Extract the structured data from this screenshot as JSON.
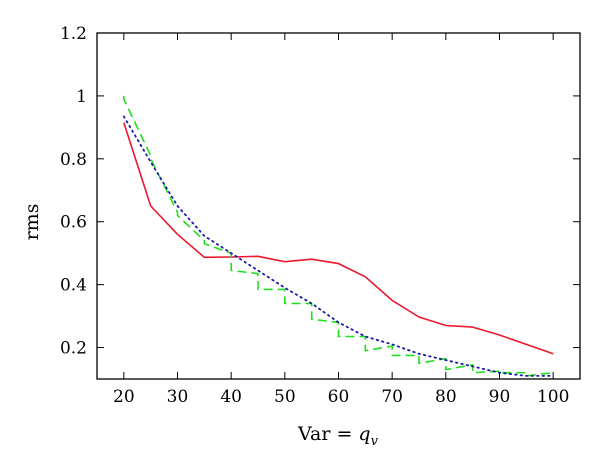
{
  "chart_data": {
    "type": "line",
    "title": "",
    "xlabel_prefix": "Var = ",
    "xlabel_var": "q",
    "xlabel_sub": "v",
    "ylabel": "rms",
    "xlim": [
      15,
      105
    ],
    "ylim": [
      0.1,
      1.2
    ],
    "xticks": [
      20,
      30,
      40,
      50,
      60,
      70,
      80,
      90,
      100
    ],
    "yticks": [
      0.2,
      0.4,
      0.6,
      0.8,
      1,
      1.2
    ],
    "grid": false,
    "legend": "none",
    "series": [
      {
        "style": "solid",
        "color": "#e8192c",
        "x": [
          20,
          25,
          30,
          35,
          40,
          45,
          50,
          55,
          60,
          65,
          70,
          75,
          80,
          85,
          90,
          95,
          100
        ],
        "y": [
          0.915,
          0.65,
          0.56,
          0.487,
          0.488,
          0.49,
          0.473,
          0.481,
          0.467,
          0.425,
          0.35,
          0.297,
          0.27,
          0.265,
          0.24,
          0.21,
          0.18
        ]
      },
      {
        "style": "dashed",
        "color": "#1fe01f",
        "steps": [
          [
            20,
            1.0,
            0.99
          ],
          [
            25,
            0.81,
            0.8
          ],
          [
            30,
            0.63,
            0.62
          ],
          [
            35,
            0.54,
            0.53
          ],
          [
            40,
            0.5,
            0.445
          ],
          [
            45,
            0.435,
            0.385
          ],
          [
            50,
            0.385,
            0.34
          ],
          [
            55,
            0.34,
            0.29
          ],
          [
            60,
            0.28,
            0.235
          ],
          [
            65,
            0.235,
            0.19
          ],
          [
            70,
            0.205,
            0.175
          ],
          [
            75,
            0.175,
            0.15
          ],
          [
            80,
            0.165,
            0.13
          ],
          [
            85,
            0.145,
            0.12
          ],
          [
            90,
            0.125,
            0.12
          ],
          [
            95,
            0.12,
            0.11
          ],
          [
            100,
            0.12,
            0.115
          ]
        ]
      },
      {
        "style": "dotted",
        "color": "#1a1aa6",
        "x": [
          20,
          25,
          30,
          35,
          40,
          45,
          50,
          55,
          60,
          65,
          70,
          75,
          80,
          85,
          90,
          95,
          100
        ],
        "y": [
          0.935,
          0.79,
          0.65,
          0.555,
          0.5,
          0.445,
          0.39,
          0.34,
          0.28,
          0.235,
          0.21,
          0.18,
          0.16,
          0.14,
          0.12,
          0.11,
          0.11
        ]
      }
    ]
  }
}
